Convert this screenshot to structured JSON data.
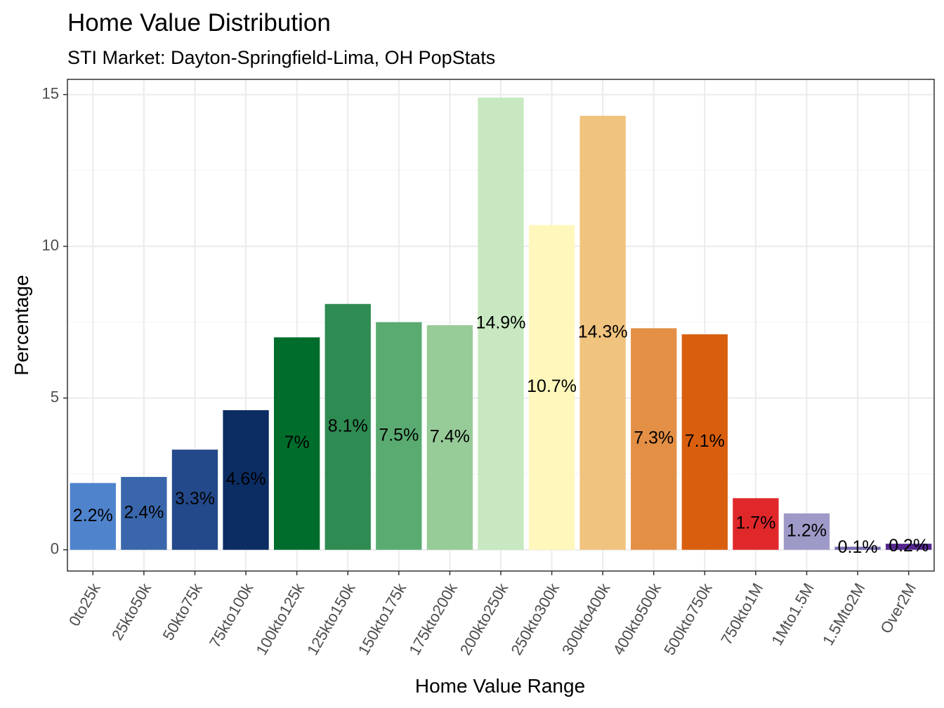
{
  "chart_data": {
    "type": "bar",
    "title": "Home Value Distribution",
    "subtitle": "STI Market: Dayton-Springfield-Lima, OH PopStats",
    "xlabel": "Home Value Range",
    "ylabel": "Percentage",
    "ylim": [
      -0.7,
      15.5
    ],
    "yticks": [
      0,
      5,
      10,
      15
    ],
    "grid": true,
    "legend": "none",
    "categories": [
      "0to25k",
      "25kto50k",
      "50kto75k",
      "75kto100k",
      "100kto125k",
      "125kto150k",
      "150kto175k",
      "175kto200k",
      "200kto250k",
      "250kto300k",
      "300kto400k",
      "400kto500k",
      "500kto750k",
      "750kto1M",
      "1Mto1.5M",
      "1.5Mto2M",
      "Over2M"
    ],
    "values": [
      2.2,
      2.4,
      3.3,
      4.6,
      7.0,
      8.1,
      7.5,
      7.4,
      14.9,
      10.7,
      14.3,
      7.3,
      7.1,
      1.7,
      1.2,
      0.1,
      0.2
    ],
    "labels": [
      "2.2%",
      "2.4%",
      "3.3%",
      "4.6%",
      "7%",
      "8.1%",
      "7.5%",
      "7.4%",
      "14.9%",
      "10.7%",
      "14.3%",
      "7.3%",
      "7.1%",
      "1.7%",
      "1.2%",
      "0.1%",
      "0.2%"
    ],
    "colors": [
      "#4f83cc",
      "#3a67ab",
      "#24498a",
      "#0c2d63",
      "#006d2c",
      "#2e8b52",
      "#5aab72",
      "#97cb98",
      "#c7e8c0",
      "#fff7bc",
      "#f0c37f",
      "#e38f45",
      "#d95f0e",
      "#e0282b",
      "#9e9ac8",
      "#756bb1",
      "#54278f"
    ]
  }
}
